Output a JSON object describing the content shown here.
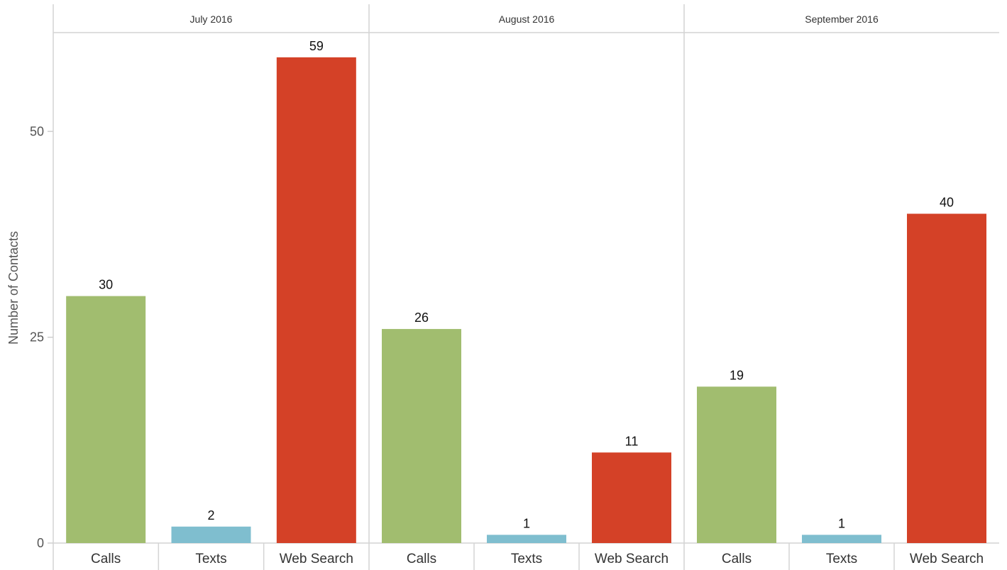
{
  "chart_data": {
    "type": "bar",
    "ylabel": "Number of Contacts",
    "ylim": [
      0,
      62
    ],
    "yticks": [
      0,
      25,
      50
    ],
    "grid": false,
    "categories": [
      "Calls",
      "Texts",
      "Web Search"
    ],
    "category_colors": {
      "Calls": "#a1bd6f",
      "Texts": "#7fbecf",
      "Web Search": "#d44127"
    },
    "panels": [
      {
        "label": "July 2016",
        "values": [
          30,
          2,
          59
        ],
        "value_labels": [
          "30",
          "2",
          "59"
        ]
      },
      {
        "label": "August 2016",
        "values": [
          26,
          1,
          11
        ],
        "value_labels": [
          "26",
          "1",
          "11"
        ]
      },
      {
        "label": "September 2016",
        "values": [
          19,
          1,
          40
        ],
        "value_labels": [
          "19",
          "1",
          "40"
        ]
      }
    ]
  }
}
